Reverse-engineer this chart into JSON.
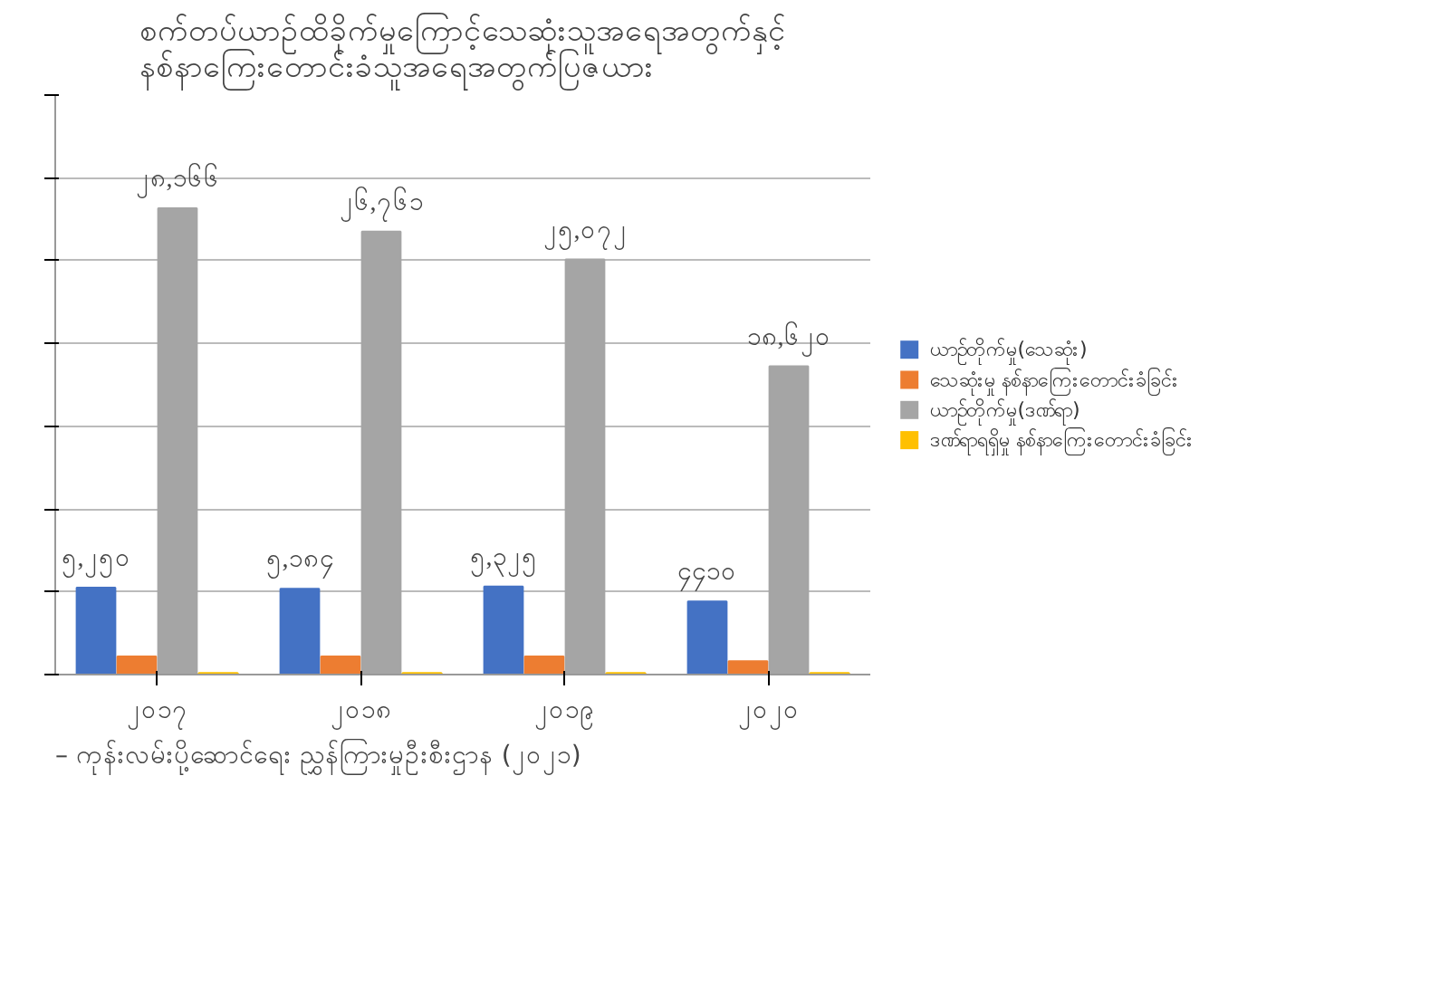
{
  "chart_data": {
    "type": "bar",
    "title": "စက်တပ်ယာဉ်ထိခိုက်မှုကြောင့်သေဆုံးသူအရေအတွက်နှင့်\nနစ်နာကြေးတောင်းခံသူအရေအတွက်ပြဇယား",
    "categories": [
      "၂၀၁၇",
      "၂၀၁၈",
      "၂၀၁၉",
      "၂၀၂၀"
    ],
    "series": [
      {
        "name": "ယာဉ်တိုက်မှု(သေဆုံး)",
        "color": "#4472c4",
        "values": [
          5250,
          5184,
          5325,
          4410
        ],
        "value_labels": [
          "၅,၂၅၀",
          "၅,၁၈၄",
          "၅,၃၂၅",
          "၄၄၁၀"
        ]
      },
      {
        "name": "သေဆုံးမှု နစ်နာကြေးတောင်းခံခြင်း",
        "color": "#ed7d31",
        "values": [
          1100,
          1100,
          1100,
          800
        ]
      },
      {
        "name": "ယာဉ်တိုက်မှု(ဒဏ်ရာ)",
        "color": "#a5a5a5",
        "values": [
          28166,
          26761,
          25072,
          18620
        ],
        "value_labels": [
          "၂၈,၁၆၆",
          "၂၆,၇၆၁",
          "၂၅,၀၇၂",
          "၁၈,၆၂၀"
        ]
      },
      {
        "name": "ဒဏ်ရာရရှိမှု နစ်နာကြေးတောင်းခံခြင်း",
        "color": "#ffc000",
        "values": [
          100,
          100,
          100,
          100
        ]
      }
    ],
    "ylim": [
      0,
      35000
    ],
    "yticks": [
      0,
      5000,
      10000,
      15000,
      20000,
      25000,
      30000,
      35000
    ],
    "tick_labels": "x",
    "grid": "y",
    "legend": "right",
    "annotations": [
      "– ကုန်းလမ်းပို့ဆောင်ရေး ညွှန်ကြားမှုဦးစီးဌာန (၂၀၂၁)"
    ]
  }
}
